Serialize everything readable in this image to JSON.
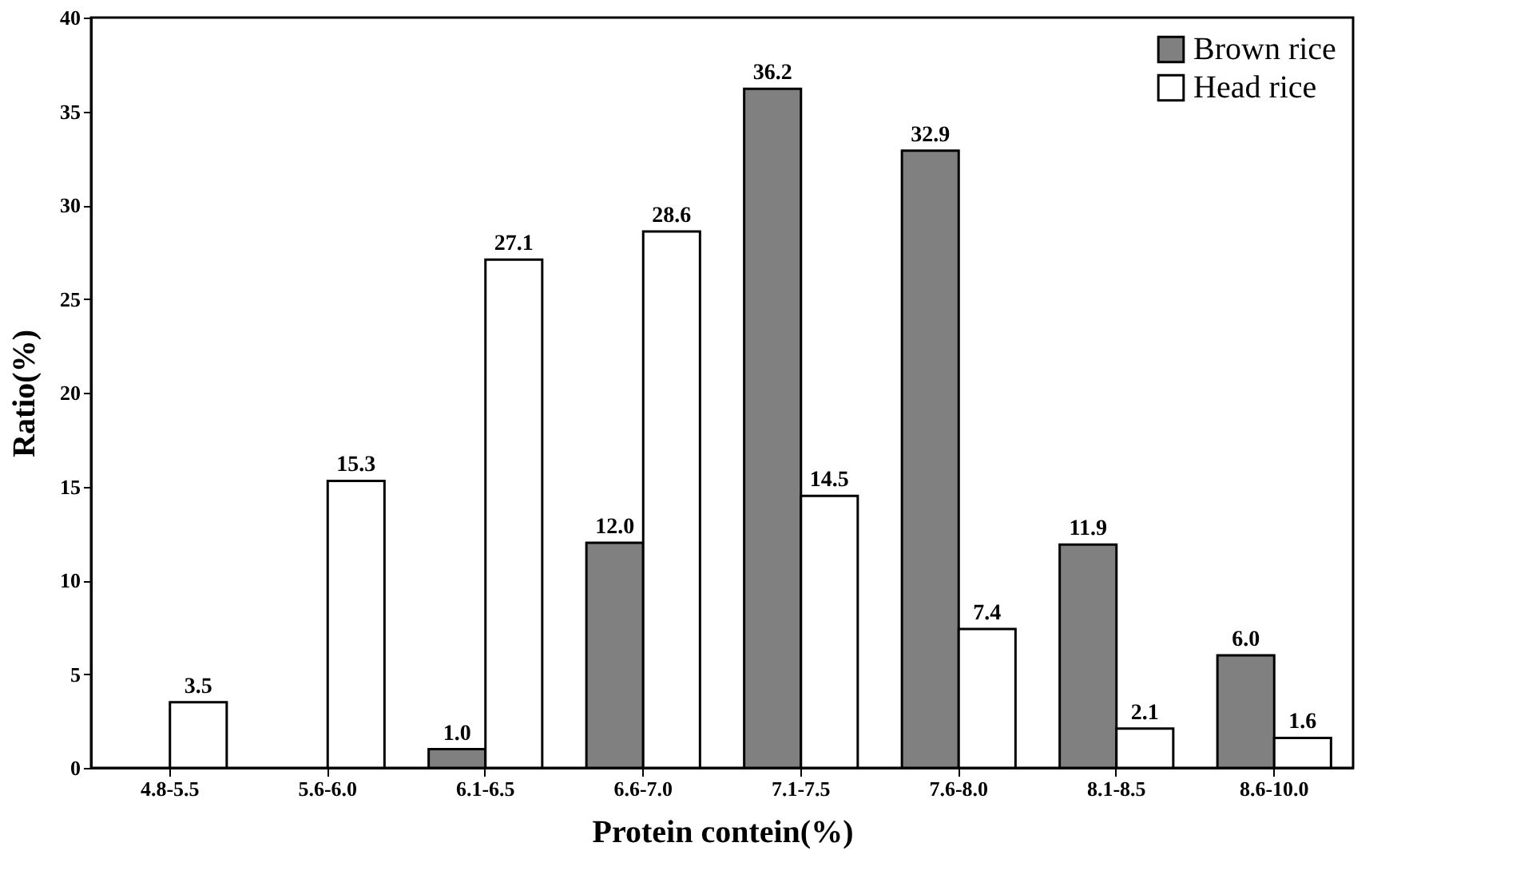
{
  "chart_data": {
    "type": "bar",
    "xlabel": "Protein contein(%)",
    "ylabel": "Ratio(%)",
    "categories": [
      "4.8-5.5",
      "5.6-6.0",
      "6.1-6.5",
      "6.6-7.0",
      "7.1-7.5",
      "7.6-8.0",
      "8.1-8.5",
      "8.6-10.0"
    ],
    "series": [
      {
        "name": "Brown rice",
        "color": "#808080",
        "values": [
          null,
          null,
          1.0,
          12.0,
          36.2,
          32.9,
          11.9,
          6.0
        ],
        "value_labels": [
          null,
          null,
          "1.0",
          "12.0",
          "36.2",
          "32.9",
          "11.9",
          "6.0"
        ]
      },
      {
        "name": "Head rice",
        "color": "#ffffff",
        "values": [
          3.5,
          15.3,
          27.1,
          28.6,
          14.5,
          7.4,
          2.1,
          1.6
        ],
        "value_labels": [
          "3.5",
          "15.3",
          "27.1",
          "28.6",
          "14.5",
          "7.4",
          "2.1",
          "1.6"
        ]
      }
    ],
    "ylim": [
      0,
      40
    ],
    "yticks": [
      0,
      5,
      10,
      15,
      20,
      25,
      30,
      35,
      40
    ],
    "grid": false,
    "legend": "top right"
  }
}
